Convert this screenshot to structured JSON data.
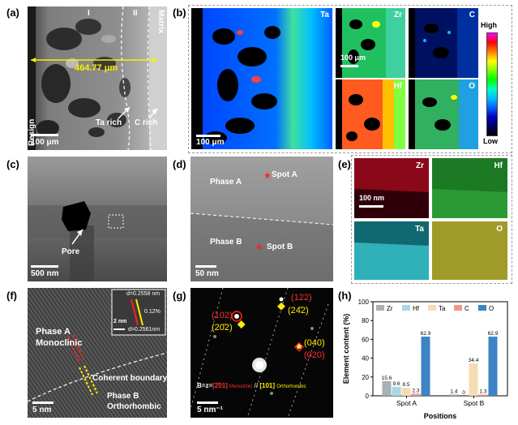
{
  "panels": {
    "a": {
      "label": "(a)",
      "region1": "I",
      "region2": "II",
      "matrix": "Matrix",
      "resign": "Resign",
      "measure": "464.77 μm",
      "ta_rich": "Ta rich",
      "c_rich": "C rich",
      "scale": "100 μm"
    },
    "b": {
      "label": "(b)",
      "maps": [
        "Ta",
        "Zr",
        "C",
        "Hf",
        "O"
      ],
      "scale_main": "100 μm",
      "scale_small": "100 μm",
      "colorbar_high": "High",
      "colorbar_low": "Low",
      "colorbar_colors": [
        "#ff00ff",
        "#ff0000",
        "#ff8000",
        "#ffff00",
        "#80ff00",
        "#00ff00",
        "#00ffc0",
        "#00c0ff",
        "#0060ff",
        "#0000c0",
        "#000060",
        "#000000"
      ]
    },
    "c": {
      "label": "(c)",
      "pore": "Pore",
      "scale": "500 nm"
    },
    "d": {
      "label": "(d)",
      "phase_a": "Phase A",
      "phase_b": "Phase B",
      "spot_a": "Spot A",
      "spot_b": "Spot B",
      "scale": "50 nm"
    },
    "e": {
      "label": "(e)",
      "maps": [
        "Zr",
        "Hf",
        "Ta",
        "O"
      ],
      "scale": "100 nm"
    },
    "f": {
      "label": "(f)",
      "phase_a": "Phase A",
      "phase_a_type": "Monoclinic",
      "boundary": "Coherent boundary",
      "phase_b": "Phase B",
      "phase_b_type": "Orthorhombic",
      "scale": "5 nm",
      "inset_d1": "d=0.2558 nm",
      "inset_d2": "d=0.2561nm",
      "inset_pct": "0.12%",
      "inset_scale": "2 nm"
    },
    "g": {
      "label": "(g)",
      "spot_102": "(102)",
      "spot_202": "(20̄2)",
      "spot_122": "(122)",
      "spot_242": "(24̄2)",
      "spot_040": "(040)",
      "spot_020": "(020)",
      "zone_prefix": "B=z=",
      "zone_mono": "[2̄01]",
      "zone_mono_name": "Monoclinic",
      "zone_sep": "//",
      "zone_ortho": "[101]",
      "zone_ortho_name": "Orthorhombic",
      "scale": "5 nm⁻¹"
    },
    "h": {
      "label": "(h)"
    }
  },
  "chart_data": {
    "type": "bar",
    "categories": [
      "Spot A",
      "Spot B"
    ],
    "series": [
      {
        "name": "Zr",
        "color": "#a7b0b3",
        "values": [
          15.6,
          1.4
        ]
      },
      {
        "name": "Hf",
        "color": "#a9d6e4",
        "values": [
          9.6,
          0
        ]
      },
      {
        "name": "Ta",
        "color": "#f6dcb2",
        "values": [
          8.5,
          34.4
        ]
      },
      {
        "name": "C",
        "color": "#ef9a88",
        "values": [
          2.3,
          1.3
        ]
      },
      {
        "name": "O",
        "color": "#3e83c4",
        "values": [
          62.9,
          62.9
        ]
      }
    ],
    "data_labels": [
      [
        "15.6",
        "9.6",
        "8.5",
        "2.3",
        "62.9"
      ],
      [
        "1.4",
        "0",
        "34.4",
        "1.3",
        "62.9"
      ]
    ],
    "xlabel": "Positions",
    "ylabel": "Element content (%)",
    "ylim": [
      0,
      100
    ],
    "yticks": [
      0,
      20,
      40,
      60,
      80,
      100
    ],
    "legend": "top"
  }
}
